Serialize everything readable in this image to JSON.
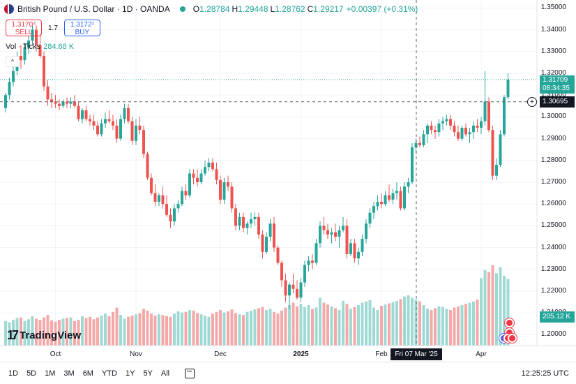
{
  "header": {
    "symbol": "British Pound / U.S. Dollar · 1D · OANDA",
    "o_label": "O",
    "o_value": "1.28784",
    "h_label": "H",
    "h_value": "1.29448",
    "l_label": "L",
    "l_value": "1.28762",
    "c_label": "C",
    "c_value": "1.29217",
    "change": "+0.00397 (+0.31%)"
  },
  "trade": {
    "sell_price": "1.3170⁴",
    "sell_label": "SELL",
    "spread": "1.7",
    "buy_price": "1.3172¹",
    "buy_label": "BUY"
  },
  "volume": {
    "label": "Vol · Ticks",
    "value": "284.68 K",
    "current_tag": "205.12 K",
    "collapse": "^"
  },
  "price_axis": [
    "1.35000",
    "1.34000",
    "1.33000",
    "1.32000",
    "1.31000",
    "1.30000",
    "1.29000",
    "1.28000",
    "1.27000",
    "1.26000",
    "1.25000",
    "1.24000",
    "1.23000",
    "1.22000",
    "1.21000",
    "1.20000"
  ],
  "price_tags": {
    "last_price": "1.31709",
    "countdown": "08:34:35",
    "crosshair_price": "1.30695"
  },
  "time_axis": [
    {
      "label": "Oct",
      "bold": false
    },
    {
      "label": "Nov",
      "bold": false
    },
    {
      "label": "Dec",
      "bold": false
    },
    {
      "label": "2025",
      "bold": true
    },
    {
      "label": "Feb",
      "bold": false
    },
    {
      "label": "Apr",
      "bold": false
    }
  ],
  "crosshair_date": "Fri 07 Mar '25",
  "logo_text": "TradingView",
  "bottom": {
    "timeframes": [
      "1D",
      "5D",
      "1M",
      "3M",
      "6M",
      "YTD",
      "1Y",
      "5Y",
      "All"
    ],
    "clock": "12:25:25 UTC"
  },
  "colors": {
    "up": "#26a69a",
    "down": "#ef5350",
    "vol_up": "#9fd9d3",
    "vol_down": "#f4a9a8",
    "grid": "#f0f3fa"
  },
  "chart_data": {
    "type": "candlestick",
    "title": "British Pound / U.S. Dollar · 1D · OANDA",
    "ylim": [
      1.195,
      1.353
    ],
    "grid": true,
    "series": [
      {
        "name": "price",
        "ohlc": [
          [
            1.304,
            1.311,
            1.302,
            1.31
          ],
          [
            1.31,
            1.318,
            1.308,
            1.316
          ],
          [
            1.316,
            1.325,
            1.314,
            1.321
          ],
          [
            1.321,
            1.33,
            1.319,
            1.328
          ],
          [
            1.328,
            1.333,
            1.322,
            1.326
          ],
          [
            1.326,
            1.334,
            1.324,
            1.332
          ],
          [
            1.332,
            1.337,
            1.329,
            1.335
          ],
          [
            1.335,
            1.342,
            1.333,
            1.34
          ],
          [
            1.34,
            1.342,
            1.33,
            1.333
          ],
          [
            1.333,
            1.338,
            1.327,
            1.328
          ],
          [
            1.328,
            1.33,
            1.312,
            1.314
          ],
          [
            1.314,
            1.317,
            1.305,
            1.308
          ],
          [
            1.308,
            1.311,
            1.304,
            1.307
          ],
          [
            1.307,
            1.31,
            1.304,
            1.306
          ],
          [
            1.306,
            1.308,
            1.303,
            1.305
          ],
          [
            1.305,
            1.308,
            1.304,
            1.307
          ],
          [
            1.307,
            1.309,
            1.304,
            1.306
          ],
          [
            1.306,
            1.309,
            1.304,
            1.307
          ],
          [
            1.307,
            1.31,
            1.304,
            1.305
          ],
          [
            1.305,
            1.307,
            1.298,
            1.299
          ],
          [
            1.299,
            1.304,
            1.297,
            1.303
          ],
          [
            1.303,
            1.305,
            1.298,
            1.299
          ],
          [
            1.299,
            1.301,
            1.296,
            1.298
          ],
          [
            1.298,
            1.301,
            1.294,
            1.296
          ],
          [
            1.296,
            1.298,
            1.291,
            1.292
          ],
          [
            1.292,
            1.299,
            1.291,
            1.297
          ],
          [
            1.297,
            1.302,
            1.295,
            1.299
          ],
          [
            1.299,
            1.303,
            1.297,
            1.298
          ],
          [
            1.298,
            1.301,
            1.294,
            1.296
          ],
          [
            1.296,
            1.299,
            1.288,
            1.29
          ],
          [
            1.29,
            1.301,
            1.289,
            1.299
          ],
          [
            1.299,
            1.306,
            1.297,
            1.304
          ],
          [
            1.304,
            1.306,
            1.297,
            1.298
          ],
          [
            1.298,
            1.3,
            1.287,
            1.289
          ],
          [
            1.289,
            1.299,
            1.287,
            1.296
          ],
          [
            1.296,
            1.3,
            1.292,
            1.294
          ],
          [
            1.294,
            1.296,
            1.281,
            1.283
          ],
          [
            1.283,
            1.284,
            1.271,
            1.272
          ],
          [
            1.272,
            1.274,
            1.264,
            1.265
          ],
          [
            1.265,
            1.269,
            1.259,
            1.261
          ],
          [
            1.261,
            1.265,
            1.259,
            1.264
          ],
          [
            1.264,
            1.268,
            1.258,
            1.26
          ],
          [
            1.26,
            1.264,
            1.254,
            1.255
          ],
          [
            1.255,
            1.258,
            1.249,
            1.252
          ],
          [
            1.252,
            1.26,
            1.25,
            1.258
          ],
          [
            1.258,
            1.262,
            1.256,
            1.26
          ],
          [
            1.26,
            1.268,
            1.259,
            1.266
          ],
          [
            1.266,
            1.269,
            1.262,
            1.264
          ],
          [
            1.264,
            1.276,
            1.263,
            1.274
          ],
          [
            1.274,
            1.276,
            1.269,
            1.272
          ],
          [
            1.272,
            1.276,
            1.268,
            1.27
          ],
          [
            1.27,
            1.276,
            1.269,
            1.274
          ],
          [
            1.274,
            1.28,
            1.273,
            1.277
          ],
          [
            1.277,
            1.281,
            1.275,
            1.279
          ],
          [
            1.279,
            1.281,
            1.275,
            1.276
          ],
          [
            1.276,
            1.279,
            1.269,
            1.271
          ],
          [
            1.271,
            1.273,
            1.26,
            1.262
          ],
          [
            1.262,
            1.272,
            1.26,
            1.27
          ],
          [
            1.27,
            1.273,
            1.266,
            1.268
          ],
          [
            1.268,
            1.27,
            1.256,
            1.258
          ],
          [
            1.258,
            1.26,
            1.248,
            1.25
          ],
          [
            1.25,
            1.256,
            1.248,
            1.254
          ],
          [
            1.254,
            1.256,
            1.247,
            1.249
          ],
          [
            1.249,
            1.252,
            1.246,
            1.251
          ],
          [
            1.251,
            1.256,
            1.249,
            1.253
          ],
          [
            1.253,
            1.256,
            1.25,
            1.254
          ],
          [
            1.254,
            1.256,
            1.244,
            1.246
          ],
          [
            1.246,
            1.248,
            1.235,
            1.238
          ],
          [
            1.238,
            1.247,
            1.237,
            1.245
          ],
          [
            1.245,
            1.253,
            1.243,
            1.251
          ],
          [
            1.251,
            1.254,
            1.238,
            1.24
          ],
          [
            1.24,
            1.241,
            1.232,
            1.233
          ],
          [
            1.233,
            1.234,
            1.222,
            1.225
          ],
          [
            1.225,
            1.228,
            1.215,
            1.218
          ],
          [
            1.218,
            1.224,
            1.212,
            1.223
          ],
          [
            1.223,
            1.228,
            1.219,
            1.221
          ],
          [
            1.221,
            1.225,
            1.216,
            1.217
          ],
          [
            1.217,
            1.226,
            1.215,
            1.224
          ],
          [
            1.224,
            1.234,
            1.222,
            1.232
          ],
          [
            1.232,
            1.236,
            1.229,
            1.234
          ],
          [
            1.234,
            1.237,
            1.23,
            1.233
          ],
          [
            1.233,
            1.244,
            1.232,
            1.242
          ],
          [
            1.242,
            1.252,
            1.24,
            1.25
          ],
          [
            1.25,
            1.254,
            1.246,
            1.248
          ],
          [
            1.248,
            1.251,
            1.244,
            1.246
          ],
          [
            1.246,
            1.249,
            1.242,
            1.247
          ],
          [
            1.247,
            1.251,
            1.243,
            1.245
          ],
          [
            1.245,
            1.25,
            1.24,
            1.248
          ],
          [
            1.248,
            1.254,
            1.247,
            1.25
          ],
          [
            1.25,
            1.253,
            1.235,
            1.237
          ],
          [
            1.237,
            1.244,
            1.236,
            1.242
          ],
          [
            1.242,
            1.244,
            1.233,
            1.235
          ],
          [
            1.235,
            1.24,
            1.232,
            1.238
          ],
          [
            1.238,
            1.246,
            1.236,
            1.244
          ],
          [
            1.244,
            1.253,
            1.242,
            1.251
          ],
          [
            1.251,
            1.258,
            1.249,
            1.256
          ],
          [
            1.256,
            1.261,
            1.253,
            1.259
          ],
          [
            1.259,
            1.264,
            1.257,
            1.261
          ],
          [
            1.261,
            1.265,
            1.258,
            1.26
          ],
          [
            1.26,
            1.266,
            1.259,
            1.264
          ],
          [
            1.264,
            1.269,
            1.261,
            1.262
          ],
          [
            1.262,
            1.267,
            1.26,
            1.265
          ],
          [
            1.265,
            1.27,
            1.262,
            1.266
          ],
          [
            1.266,
            1.268,
            1.257,
            1.258
          ],
          [
            1.258,
            1.27,
            1.257,
            1.268
          ],
          [
            1.268,
            1.272,
            1.265,
            1.27
          ],
          [
            1.27,
            1.288,
            1.269,
            1.286
          ],
          [
            1.286,
            1.29,
            1.283,
            1.288
          ],
          [
            1.288,
            1.291,
            1.286,
            1.287
          ],
          [
            1.287,
            1.294,
            1.286,
            1.292
          ],
          [
            1.292,
            1.297,
            1.288,
            1.296
          ],
          [
            1.296,
            1.298,
            1.292,
            1.294
          ],
          [
            1.294,
            1.296,
            1.29,
            1.293
          ],
          [
            1.293,
            1.299,
            1.291,
            1.297
          ],
          [
            1.297,
            1.3,
            1.294,
            1.298
          ],
          [
            1.298,
            1.301,
            1.296,
            1.299
          ],
          [
            1.299,
            1.301,
            1.294,
            1.296
          ],
          [
            1.296,
            1.298,
            1.291,
            1.293
          ],
          [
            1.293,
            1.296,
            1.289,
            1.29
          ],
          [
            1.29,
            1.296,
            1.289,
            1.295
          ],
          [
            1.295,
            1.297,
            1.291,
            1.292
          ],
          [
            1.292,
            1.295,
            1.288,
            1.293
          ],
          [
            1.293,
            1.298,
            1.29,
            1.296
          ],
          [
            1.296,
            1.299,
            1.293,
            1.295
          ],
          [
            1.295,
            1.3,
            1.292,
            1.298
          ],
          [
            1.298,
            1.321,
            1.296,
            1.307
          ],
          [
            1.307,
            1.309,
            1.293,
            1.294
          ],
          [
            1.294,
            1.296,
            1.271,
            1.273
          ],
          [
            1.273,
            1.281,
            1.271,
            1.278
          ],
          [
            1.278,
            1.294,
            1.277,
            1.292
          ],
          [
            1.292,
            1.31,
            1.291,
            1.309
          ],
          [
            1.309,
            1.32,
            1.308,
            1.3171
          ]
        ]
      },
      {
        "name": "volume",
        "values": [
          40,
          38,
          42,
          45,
          46,
          40,
          43,
          48,
          44,
          42,
          46,
          50,
          41,
          39,
          42,
          44,
          45,
          46,
          40,
          42,
          48,
          45,
          47,
          43,
          46,
          49,
          52,
          48,
          55,
          62,
          50,
          44,
          47,
          49,
          51,
          53,
          60,
          57,
          52,
          49,
          51,
          50,
          48,
          47,
          52,
          56,
          54,
          55,
          58,
          57,
          53,
          51,
          49,
          47,
          52,
          55,
          58,
          54,
          56,
          59,
          53,
          51,
          50,
          55,
          57,
          59,
          61,
          63,
          58,
          60,
          55,
          52,
          57,
          62,
          66,
          70,
          64,
          68,
          63,
          66,
          60,
          62,
          78,
          70,
          67,
          64,
          61,
          58,
          73,
          68,
          60,
          63,
          66,
          70,
          72,
          74,
          62,
          58,
          65,
          67,
          69,
          71,
          73,
          76,
          80,
          82,
          78,
          75,
          72,
          66,
          60,
          58,
          61,
          64,
          63,
          60,
          58,
          62,
          64,
          66,
          68,
          70,
          72,
          75,
          110,
          123,
          120,
          131,
          118,
          128,
          114,
          109
        ]
      }
    ]
  }
}
